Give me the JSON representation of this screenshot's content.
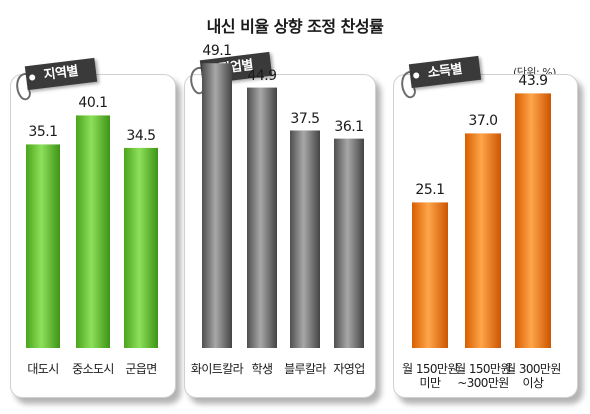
{
  "title": "내신 비율 상향 조정 찬성률",
  "unit": "(단위: %)",
  "chart_data": [
    {
      "type": "bar",
      "title": "지역별",
      "categories": [
        "대도시",
        "중소도시",
        "군읍면"
      ],
      "values": [
        35.1,
        40.1,
        34.5
      ],
      "ylim": [
        0,
        50
      ],
      "color": "#5fc42a",
      "grid": false
    },
    {
      "type": "bar",
      "title": "직업별",
      "categories": [
        "화이트칼라",
        "학생",
        "블루칼라",
        "자영업"
      ],
      "values": [
        49.1,
        44.9,
        37.5,
        36.1
      ],
      "ylim": [
        0,
        50
      ],
      "color": "#6e6e6e",
      "grid": false
    },
    {
      "type": "bar",
      "title": "소득별",
      "categories": [
        "월 150만원 미만",
        "월 150만원 ~300만원",
        "월 300만원 이상"
      ],
      "category_lines": [
        [
          "월 150만원",
          "미만"
        ],
        [
          "월 150만원",
          "~300만원"
        ],
        [
          "월 300만원",
          "이상"
        ]
      ],
      "values": [
        25.1,
        37.0,
        43.9
      ],
      "value_labels": [
        "25.1",
        "37.0",
        "43.9"
      ],
      "ylim": [
        0,
        50
      ],
      "color": "#f07a0a",
      "grid": false
    }
  ]
}
